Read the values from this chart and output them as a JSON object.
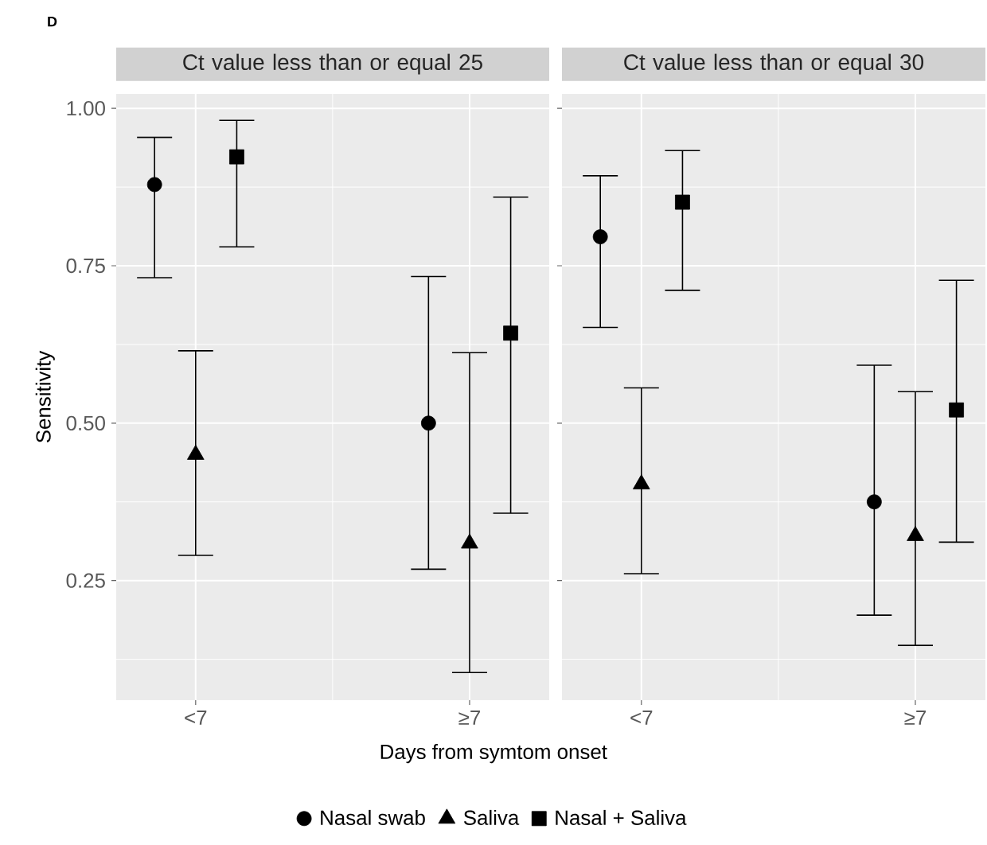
{
  "chart_data": [
    {
      "type": "scatter",
      "title": "Ct value less than or equal 25",
      "xlabel": "Days from symtom onset",
      "ylabel": "Sensitivity",
      "annotations": [
        "D"
      ],
      "categories": [
        "<7",
        "≥7"
      ],
      "ylim": [
        0.06,
        1.023
      ],
      "yticks": [
        {
          "value": 0.25,
          "label": "0.25"
        },
        {
          "value": 0.5,
          "label": "0.50"
        },
        {
          "value": 0.75,
          "label": "0.75"
        },
        {
          "value": 1.0,
          "label": "1.00"
        }
      ],
      "grid": true,
      "legend": "bottom",
      "series": [
        {
          "name": "Nasal swab",
          "color": "#000000",
          "marker": "circle",
          "values": [
            0.879,
            0.5
          ],
          "errors": [
            [
              0.731,
              0.954
            ],
            [
              0.268,
              0.733
            ]
          ]
        },
        {
          "name": "Saliva",
          "color": "#000000",
          "marker": "triangle",
          "values": [
            0.45,
            0.309
          ],
          "errors": [
            [
              0.29,
              0.615
            ],
            [
              0.104,
              0.612
            ]
          ]
        },
        {
          "name": "Nasal + Saliva",
          "color": "#000000",
          "marker": "square",
          "values": [
            0.923,
            0.643
          ],
          "errors": [
            [
              0.78,
              0.981
            ],
            [
              0.357,
              0.859
            ]
          ]
        }
      ]
    },
    {
      "type": "scatter",
      "title": "Ct value less than or equal 30",
      "categories": [
        "<7",
        "≥7"
      ],
      "ylim": [
        0.06,
        1.023
      ],
      "yticks": [
        {
          "value": 0.25,
          "label": null
        },
        {
          "value": 0.5,
          "label": null
        },
        {
          "value": 0.75,
          "label": null
        },
        {
          "value": 1.0,
          "label": null
        }
      ],
      "grid": true,
      "tick_labels": "x",
      "series": [
        {
          "color": "#000000",
          "marker": "circle",
          "values": [
            0.796,
            0.375
          ],
          "errors": [
            [
              0.652,
              0.893
            ],
            [
              0.195,
              0.592
            ]
          ]
        },
        {
          "color": "#000000",
          "marker": "triangle",
          "values": [
            0.403,
            0.321
          ],
          "errors": [
            [
              0.261,
              0.556
            ],
            [
              0.147,
              0.55
            ]
          ]
        },
        {
          "color": "#000000",
          "marker": "square",
          "values": [
            0.851,
            0.521
          ],
          "errors": [
            [
              0.711,
              0.933
            ],
            [
              0.311,
              0.727
            ]
          ]
        }
      ]
    }
  ]
}
